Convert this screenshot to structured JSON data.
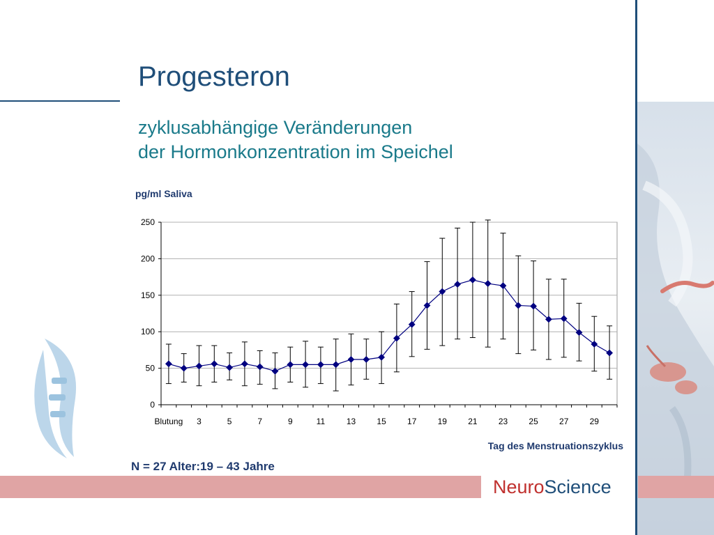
{
  "slide": {
    "title": "Progesteron",
    "subtitle_line1": "zyklusabhängige Veränderungen",
    "subtitle_line2": "der Hormonkonzentration im Speichel",
    "footnote": "N = 27   Alter:19 – 43 Jahre",
    "brand_part1": "Neuro",
    "brand_part2": "Science"
  },
  "colors": {
    "title": "#1f4e79",
    "subtitle": "#1a7a8a",
    "series": "#000080",
    "band": "#e0a4a4",
    "brand_red": "#c0302e"
  },
  "chart_data": {
    "type": "line",
    "title": "",
    "ylabel": "pg/ml Saliva",
    "xlabel": "Tag des Menstruationszyklus",
    "ylim": [
      0,
      250
    ],
    "yticks": [
      0,
      50,
      100,
      150,
      200,
      250
    ],
    "grid": true,
    "x": [
      "Blutung",
      "2",
      "3",
      "4",
      "5",
      "6",
      "7",
      "8",
      "9",
      "10",
      "11",
      "12",
      "13",
      "14",
      "15",
      "16",
      "17",
      "18",
      "19",
      "20",
      "21",
      "22",
      "23",
      "24",
      "25",
      "26",
      "27",
      "28",
      "29",
      "30"
    ],
    "xtick_labels": [
      "Blutung",
      "",
      "3",
      "",
      "5",
      "",
      "7",
      "",
      "9",
      "",
      "11",
      "",
      "13",
      "",
      "15",
      "",
      "17",
      "",
      "19",
      "",
      "21",
      "",
      "23",
      "",
      "25",
      "",
      "27",
      "",
      "29",
      ""
    ],
    "series": [
      {
        "values": [
          56,
          50,
          53,
          56,
          51,
          56,
          52,
          46,
          55,
          55,
          55,
          55,
          62,
          62,
          65,
          91,
          110,
          136,
          155,
          165,
          171,
          166,
          163,
          136,
          135,
          117,
          118,
          99,
          83,
          71
        ],
        "upper": [
          83,
          70,
          81,
          81,
          71,
          86,
          74,
          71,
          79,
          87,
          79,
          90,
          97,
          90,
          100,
          138,
          155,
          196,
          228,
          242,
          250,
          253,
          235,
          204,
          197,
          172,
          172,
          139,
          121,
          108
        ],
        "lower": [
          29,
          31,
          26,
          31,
          34,
          26,
          28,
          22,
          31,
          24,
          29,
          19,
          27,
          35,
          29,
          45,
          66,
          76,
          81,
          90,
          92,
          79,
          90,
          70,
          75,
          62,
          65,
          60,
          46,
          35
        ]
      }
    ]
  }
}
